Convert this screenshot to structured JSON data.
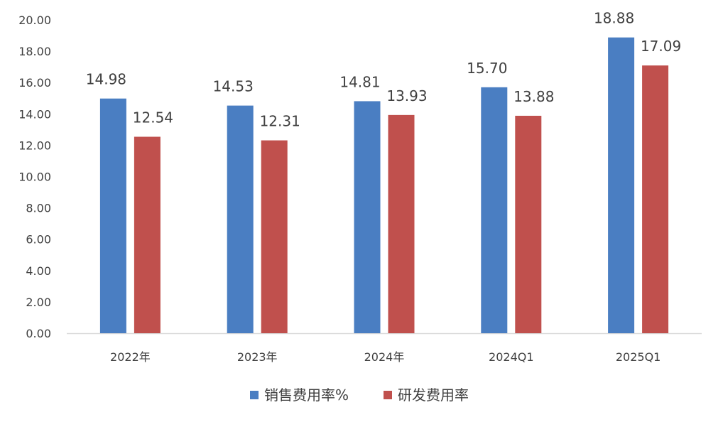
{
  "chart_data": {
    "type": "bar",
    "title": "",
    "xlabel": "",
    "ylabel": "",
    "categories": [
      "2022年",
      "2023年",
      "2024年",
      "2024Q1",
      "2025Q1"
    ],
    "series": [
      {
        "name": "销售费用率%",
        "values": [
          14.98,
          14.53,
          14.81,
          15.7,
          18.88
        ]
      },
      {
        "name": "研发费用率",
        "values": [
          12.54,
          12.31,
          13.93,
          13.88,
          17.09
        ]
      }
    ],
    "ylim": [
      0,
      20
    ],
    "yticks": [
      0,
      2,
      4,
      6,
      8,
      10,
      12,
      14,
      16,
      18,
      20
    ],
    "ytick_labels": [
      "0.00",
      "2.00",
      "4.00",
      "6.00",
      "8.00",
      "10.00",
      "12.00",
      "14.00",
      "16.00",
      "18.00",
      "20.00"
    ],
    "data_labels": [
      [
        "14.98",
        "14.53",
        "14.81",
        "15.70",
        "18.88"
      ],
      [
        "12.54",
        "12.31",
        "13.93",
        "13.88",
        "17.09"
      ]
    ],
    "grid": false,
    "legend_position": "bottom",
    "colors": [
      "#4a7ec2",
      "#c0504d"
    ]
  }
}
